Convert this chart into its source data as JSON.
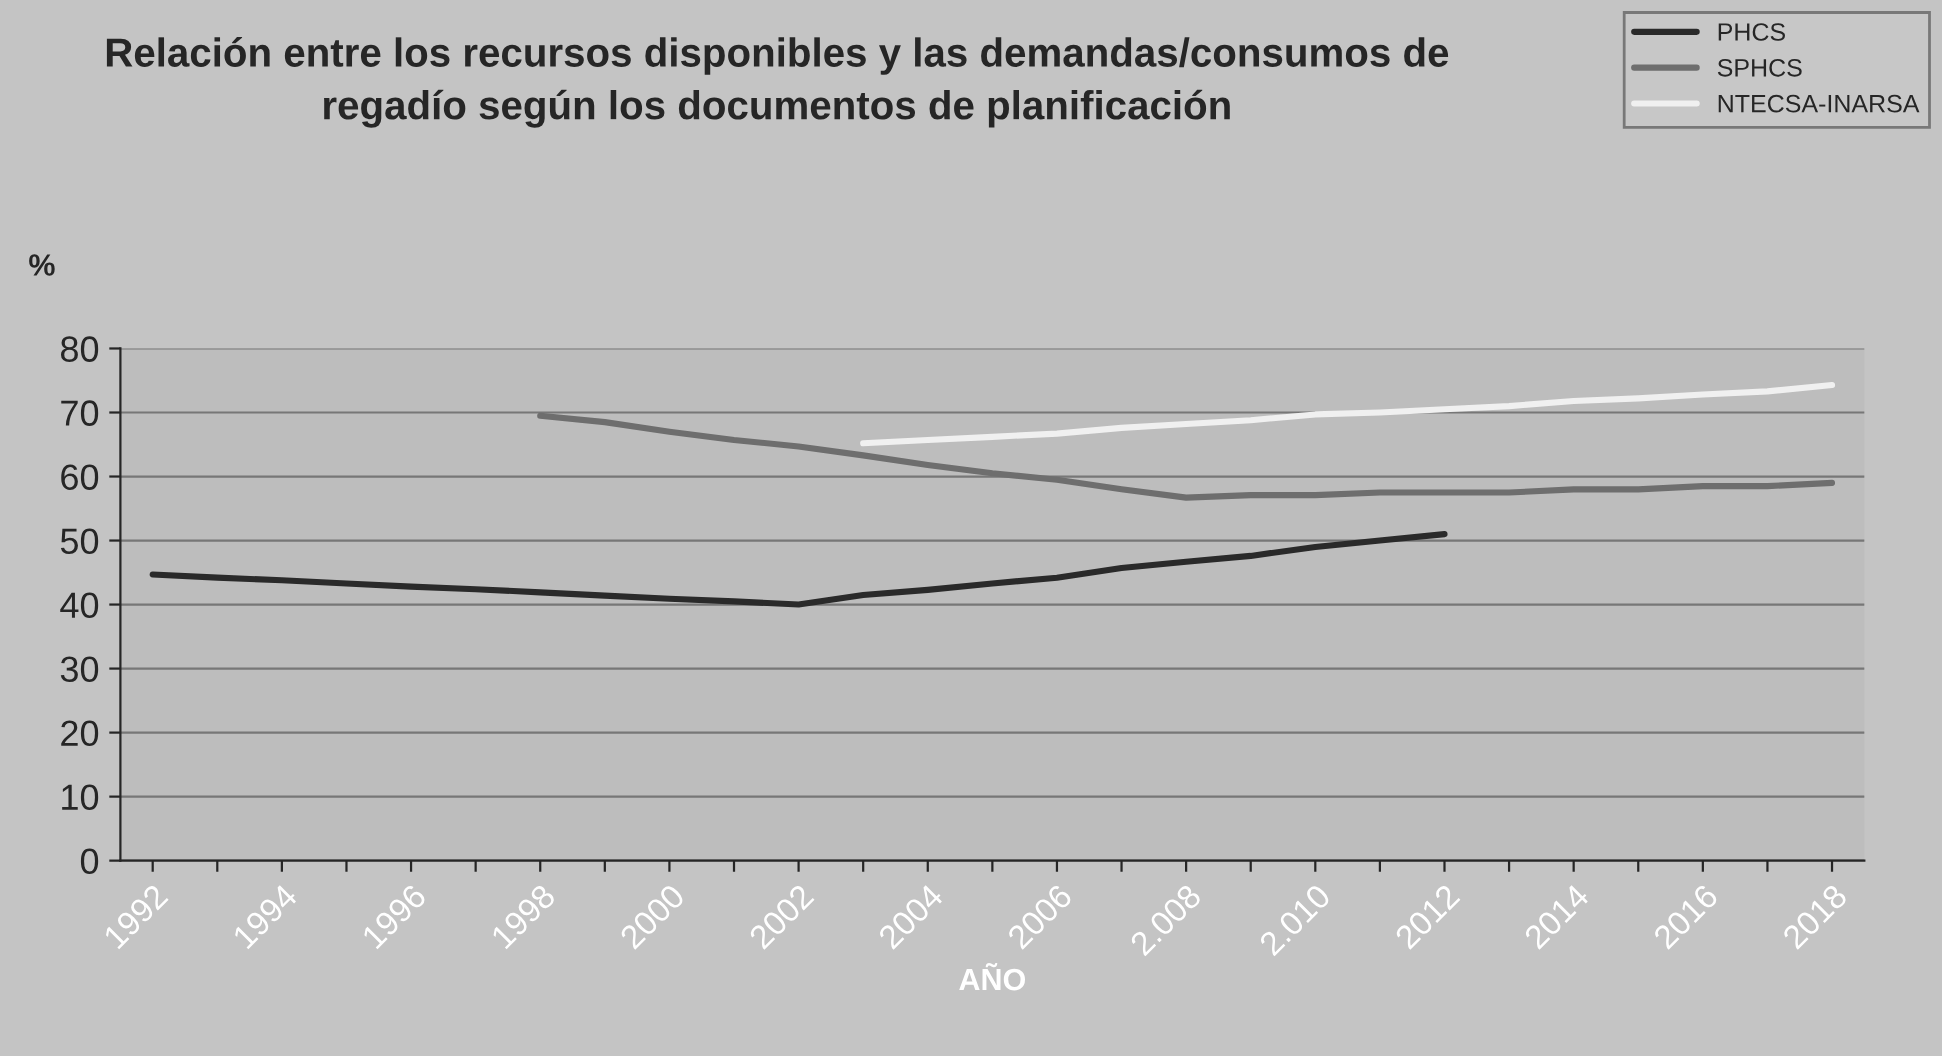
{
  "chart_data": {
    "type": "line",
    "title": "Relación entre los recursos disponibles y las demandas/consumos de\nregadío según los documentos de planificación",
    "xlabel": "AÑO",
    "ylabel": "%",
    "categories": [
      "1992",
      null,
      "1994",
      null,
      "1996",
      null,
      "1998",
      null,
      "2000",
      null,
      "2002",
      null,
      "2004",
      null,
      "2006",
      null,
      "2.008",
      null,
      "2.010",
      null,
      "2012",
      null,
      "2014",
      null,
      "2016",
      null,
      "2018"
    ],
    "series": [
      {
        "name": "PHCS",
        "color": "#2a2a2a",
        "values": [
          44.7,
          44.2,
          43.8,
          43.3,
          42.8,
          42.4,
          41.9,
          41.4,
          40.9,
          40.5,
          40.0,
          41.5,
          42.3,
          43.3,
          44.2,
          45.7,
          46.7,
          47.6,
          49.0,
          50.0,
          51.0,
          null,
          null,
          null,
          null,
          null,
          null
        ]
      },
      {
        "name": "SPHCS",
        "color": "#6e6e6e",
        "values": [
          null,
          null,
          null,
          null,
          null,
          null,
          69.5,
          68.5,
          67.0,
          65.7,
          64.7,
          63.3,
          61.8,
          60.5,
          59.5,
          58.0,
          56.7,
          57.1,
          57.1,
          57.5,
          57.5,
          57.5,
          58.0,
          58.0,
          58.5,
          58.5,
          59.0
        ]
      },
      {
        "name": "NTECSA-INARSA",
        "color": "#f0f0f0",
        "values": [
          null,
          null,
          null,
          null,
          null,
          null,
          null,
          null,
          null,
          null,
          null,
          65.2,
          65.7,
          66.2,
          66.7,
          67.6,
          68.2,
          68.8,
          69.7,
          70.0,
          70.5,
          71.0,
          71.8,
          72.2,
          72.8,
          73.3,
          74.3
        ]
      }
    ],
    "ylim": [
      0,
      80
    ],
    "yticks": [
      0,
      10,
      20,
      30,
      40,
      50,
      60,
      70,
      80
    ],
    "grid": "y",
    "legend": "top right",
    "marker": "none",
    "line_style": "solid"
  }
}
